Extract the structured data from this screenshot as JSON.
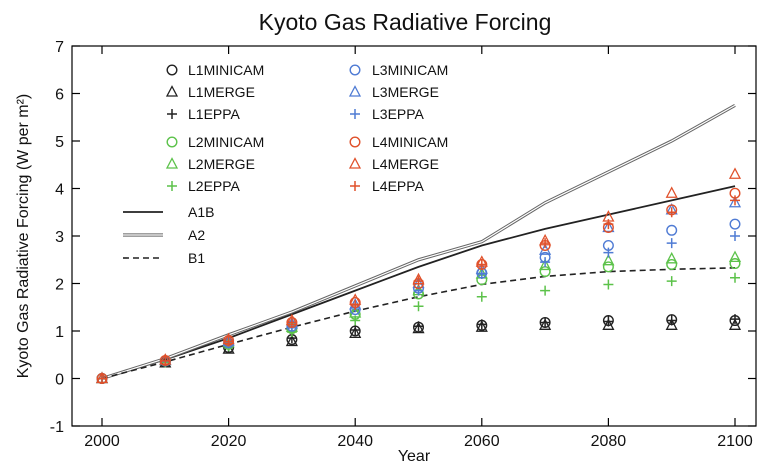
{
  "chart_data": {
    "type": "scatter",
    "title": "Kyoto Gas Radiative Forcing",
    "xlabel": "Year",
    "ylabel": "Kyoto Gas Radiative Forcing (W per m²)",
    "xlim": [
      2000,
      2100
    ],
    "ylim": [
      -1,
      7
    ],
    "xticks": [
      "2000",
      "2020",
      "2040",
      "2060",
      "2080",
      "2100"
    ],
    "yticks": [
      "-1",
      "0",
      "1",
      "2",
      "3",
      "4",
      "5",
      "6",
      "7"
    ],
    "grid": false,
    "colors": {
      "L1": "#222222",
      "L2": "#5cc24a",
      "L3": "#4f7bd4",
      "L4": "#e0512b"
    },
    "scatter_series": [
      {
        "name": "L1MINICAM",
        "marker": "circle",
        "color": "#222222",
        "x": [
          2000,
          2010,
          2020,
          2030,
          2040,
          2050,
          2060,
          2070,
          2080,
          2090,
          2100
        ],
        "y": [
          0.0,
          0.35,
          0.65,
          0.82,
          1.0,
          1.08,
          1.12,
          1.18,
          1.22,
          1.24,
          1.22
        ]
      },
      {
        "name": "L1MERGE",
        "marker": "triangle",
        "color": "#222222",
        "x": [
          2000,
          2010,
          2020,
          2030,
          2040,
          2050,
          2060,
          2070,
          2080,
          2090,
          2100
        ],
        "y": [
          0.0,
          0.33,
          0.62,
          0.78,
          0.95,
          1.05,
          1.08,
          1.12,
          1.12,
          1.12,
          1.12
        ]
      },
      {
        "name": "L1EPPA",
        "marker": "plus",
        "color": "#222222",
        "x": [
          2000,
          2010,
          2020,
          2030,
          2040,
          2050,
          2060,
          2070,
          2080,
          2090,
          2100
        ],
        "y": [
          0.0,
          0.36,
          0.66,
          0.85,
          1.02,
          1.1,
          1.14,
          1.18,
          1.2,
          1.22,
          1.25
        ]
      },
      {
        "name": "L2MINICAM",
        "marker": "circle",
        "color": "#5cc24a",
        "x": [
          2000,
          2010,
          2020,
          2030,
          2040,
          2050,
          2060,
          2070,
          2080,
          2090,
          2100
        ],
        "y": [
          0.0,
          0.37,
          0.72,
          1.05,
          1.35,
          1.78,
          2.08,
          2.25,
          2.35,
          2.4,
          2.42
        ]
      },
      {
        "name": "L2MERGE",
        "marker": "triangle",
        "color": "#5cc24a",
        "x": [
          2000,
          2010,
          2020,
          2030,
          2040,
          2050,
          2060,
          2070,
          2080,
          2090,
          2100
        ],
        "y": [
          0.0,
          0.38,
          0.75,
          1.08,
          1.38,
          1.85,
          2.2,
          2.38,
          2.48,
          2.52,
          2.55
        ]
      },
      {
        "name": "L2EPPA",
        "marker": "plus",
        "color": "#5cc24a",
        "x": [
          2000,
          2010,
          2020,
          2030,
          2040,
          2050,
          2060,
          2070,
          2080,
          2090,
          2100
        ],
        "y": [
          0.0,
          0.34,
          0.68,
          0.98,
          1.22,
          1.52,
          1.72,
          1.85,
          1.98,
          2.05,
          2.12
        ]
      },
      {
        "name": "L3MINICAM",
        "marker": "circle",
        "color": "#4f7bd4",
        "x": [
          2000,
          2010,
          2020,
          2030,
          2040,
          2050,
          2060,
          2070,
          2080,
          2090,
          2100
        ],
        "y": [
          0.0,
          0.37,
          0.75,
          1.1,
          1.45,
          1.9,
          2.22,
          2.55,
          2.8,
          3.12,
          3.25
        ]
      },
      {
        "name": "L3MERGE",
        "marker": "triangle",
        "color": "#4f7bd4",
        "x": [
          2000,
          2010,
          2020,
          2030,
          2040,
          2050,
          2060,
          2070,
          2080,
          2090,
          2100
        ],
        "y": [
          0.0,
          0.38,
          0.78,
          1.15,
          1.55,
          2.0,
          2.3,
          2.7,
          3.18,
          3.55,
          3.7
        ]
      },
      {
        "name": "L3EPPA",
        "marker": "plus",
        "color": "#4f7bd4",
        "x": [
          2000,
          2010,
          2020,
          2030,
          2040,
          2050,
          2060,
          2070,
          2080,
          2090,
          2100
        ],
        "y": [
          0.0,
          0.36,
          0.74,
          1.1,
          1.5,
          1.85,
          2.2,
          2.45,
          2.65,
          2.85,
          3.0
        ]
      },
      {
        "name": "L4MINICAM",
        "marker": "circle",
        "color": "#e0512b",
        "x": [
          2000,
          2010,
          2020,
          2030,
          2040,
          2050,
          2060,
          2070,
          2080,
          2090,
          2100
        ],
        "y": [
          0.0,
          0.38,
          0.8,
          1.18,
          1.6,
          2.0,
          2.4,
          2.8,
          3.18,
          3.55,
          3.9
        ]
      },
      {
        "name": "L4MERGE",
        "marker": "triangle",
        "color": "#e0512b",
        "x": [
          2000,
          2010,
          2020,
          2030,
          2040,
          2050,
          2060,
          2070,
          2080,
          2090,
          2100
        ],
        "y": [
          0.0,
          0.39,
          0.82,
          1.22,
          1.65,
          2.08,
          2.45,
          2.9,
          3.4,
          3.9,
          4.3
        ]
      },
      {
        "name": "L4EPPA",
        "marker": "plus",
        "color": "#e0512b",
        "x": [
          2000,
          2010,
          2020,
          2030,
          2040,
          2050,
          2060,
          2070,
          2080,
          2090,
          2100
        ],
        "y": [
          0.0,
          0.37,
          0.78,
          1.18,
          1.55,
          2.05,
          2.4,
          2.85,
          3.25,
          3.5,
          3.75
        ]
      }
    ],
    "line_series": [
      {
        "name": "A1B",
        "style": "solid",
        "x": [
          2000,
          2010,
          2020,
          2030,
          2040,
          2050,
          2060,
          2070,
          2080,
          2090,
          2100
        ],
        "y": [
          0.0,
          0.4,
          0.85,
          1.35,
          1.85,
          2.35,
          2.8,
          3.15,
          3.45,
          3.75,
          4.05
        ]
      },
      {
        "name": "A2",
        "style": "double",
        "x": [
          2000,
          2010,
          2020,
          2030,
          2040,
          2050,
          2060,
          2070,
          2080,
          2090,
          2100
        ],
        "y": [
          0.0,
          0.42,
          0.92,
          1.4,
          1.95,
          2.5,
          2.88,
          3.7,
          4.35,
          5.0,
          5.75
        ]
      },
      {
        "name": "B1",
        "style": "dashed",
        "x": [
          2000,
          2010,
          2020,
          2030,
          2040,
          2050,
          2060,
          2070,
          2080,
          2090,
          2100
        ],
        "y": [
          0.0,
          0.35,
          0.72,
          1.08,
          1.42,
          1.72,
          1.98,
          2.15,
          2.25,
          2.3,
          2.33
        ]
      }
    ]
  }
}
